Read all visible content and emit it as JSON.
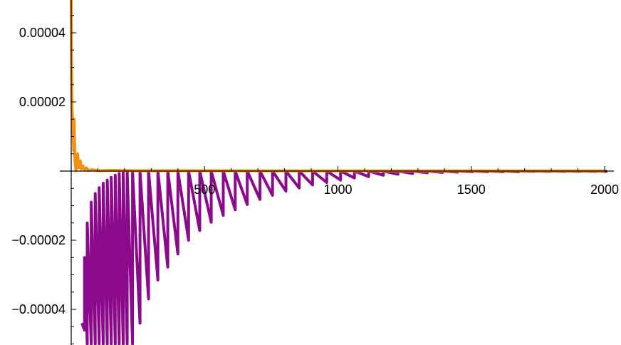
{
  "chart_data": {
    "type": "line",
    "title": "",
    "xlabel": "",
    "ylabel": "",
    "xlim": [
      0,
      2010
    ],
    "ylim": [
      -5e-05,
      5e-05
    ],
    "grid": false,
    "legend": "none",
    "x_ticks": [
      {
        "value": 500,
        "label": "500"
      },
      {
        "value": 1000,
        "label": "1000"
      },
      {
        "value": 1500,
        "label": "1500"
      },
      {
        "value": 2000,
        "label": "2000"
      }
    ],
    "y_ticks": [
      {
        "value": 4e-05,
        "label": "0.00004"
      },
      {
        "value": 2e-05,
        "label": "0.00002"
      },
      {
        "value": -2e-05,
        "label": "−0.00002"
      },
      {
        "value": -4e-05,
        "label": "−0.00004"
      }
    ],
    "series": [
      {
        "color": "#8B0A8B",
        "points": [
          [
            40,
            -4.4e-05
          ],
          [
            50,
            -4.6e-05
          ],
          [
            50,
            -2.5e-05
          ],
          [
            60,
            -5e-05
          ],
          [
            60,
            -1.5e-05
          ],
          [
            75,
            -5e-05
          ],
          [
            75,
            -9e-06
          ],
          [
            90,
            -5e-05
          ],
          [
            90,
            -6.5e-06
          ],
          [
            105,
            -5e-05
          ],
          [
            105,
            -4.8e-06
          ],
          [
            120,
            -5e-05
          ],
          [
            120,
            -3.5e-06
          ],
          [
            135,
            -5e-05
          ],
          [
            135,
            -2.6e-06
          ],
          [
            150,
            -5e-05
          ],
          [
            150,
            -1.8e-06
          ],
          [
            165,
            -5e-05
          ],
          [
            165,
            -1.2e-06
          ],
          [
            180,
            -5e-05
          ],
          [
            180,
            -7e-07
          ],
          [
            195,
            -5e-05
          ],
          [
            195,
            -3e-07
          ],
          [
            210,
            -5e-05
          ],
          [
            210,
            -1e-07
          ],
          [
            230,
            -5e-05
          ],
          [
            230,
            0
          ],
          [
            258,
            -4.4e-05
          ],
          [
            258,
            0
          ],
          [
            290,
            -3.7e-05
          ],
          [
            290,
            0
          ],
          [
            325,
            -3.15e-05
          ],
          [
            325,
            0
          ],
          [
            362,
            -2.78e-05
          ],
          [
            362,
            0
          ],
          [
            400,
            -2.4e-05
          ],
          [
            400,
            0
          ],
          [
            440,
            -2e-05
          ],
          [
            440,
            0
          ],
          [
            482,
            -1.72e-05
          ],
          [
            482,
            0
          ],
          [
            525,
            -1.48e-05
          ],
          [
            525,
            0
          ],
          [
            570,
            -1.28e-05
          ],
          [
            570,
            0
          ],
          [
            615,
            -1.12e-05
          ],
          [
            615,
            0
          ],
          [
            660,
            -9.7e-06
          ],
          [
            660,
            0
          ],
          [
            708,
            -8.2e-06
          ],
          [
            708,
            0
          ],
          [
            755,
            -7e-06
          ],
          [
            755,
            0
          ],
          [
            805,
            -5.8e-06
          ],
          [
            805,
            0
          ],
          [
            855,
            -4.9e-06
          ],
          [
            855,
            0
          ],
          [
            905,
            -4e-06
          ],
          [
            905,
            0
          ],
          [
            958,
            -3.3e-06
          ],
          [
            958,
            0
          ],
          [
            1010,
            -2.6e-06
          ],
          [
            1010,
            0
          ],
          [
            1062,
            -2e-06
          ],
          [
            1062,
            0
          ],
          [
            1115,
            -1.6e-06
          ],
          [
            1115,
            0
          ],
          [
            1170,
            -1.2e-06
          ],
          [
            1170,
            0
          ],
          [
            1225,
            -9e-07
          ],
          [
            1225,
            0
          ],
          [
            1280,
            -7e-07
          ],
          [
            1280,
            0
          ],
          [
            1335,
            -5e-07
          ],
          [
            1335,
            0
          ],
          [
            1392,
            -4e-07
          ],
          [
            1392,
            0
          ],
          [
            1448,
            -3e-07
          ],
          [
            1448,
            0
          ],
          [
            1505,
            -2e-07
          ],
          [
            1505,
            0
          ],
          [
            1562,
            -2e-07
          ],
          [
            1562,
            0
          ],
          [
            1620,
            -2e-07
          ],
          [
            1620,
            0
          ],
          [
            1678,
            -2e-07
          ],
          [
            1678,
            0
          ],
          [
            1736,
            -1e-07
          ],
          [
            1736,
            0
          ],
          [
            1795,
            -1e-07
          ],
          [
            1795,
            0
          ],
          [
            1852,
            -1e-07
          ],
          [
            1852,
            0
          ],
          [
            1910,
            -1e-07
          ],
          [
            1910,
            0
          ],
          [
            1968,
            -1e-07
          ],
          [
            1968,
            0
          ],
          [
            2010,
            -1e-07
          ]
        ]
      },
      {
        "color": "#F5900F",
        "points": [
          [
            0,
            5e-05
          ],
          [
            1,
            3.5e-05
          ],
          [
            3,
            1.9e-05
          ],
          [
            6,
            1.3e-05
          ],
          [
            9,
            6e-06
          ],
          [
            11,
            1.5e-05
          ],
          [
            14,
            3e-06
          ],
          [
            18,
            1e-07
          ],
          [
            24,
            5e-06
          ],
          [
            28,
            1e-06
          ],
          [
            34,
            3e-06
          ],
          [
            38,
            6e-07
          ],
          [
            44,
            1.5e-06
          ],
          [
            50,
            4e-07
          ],
          [
            57,
            9e-07
          ],
          [
            65,
            2e-07
          ],
          [
            80,
            4e-07
          ],
          [
            100,
            1e-07
          ],
          [
            150,
            2e-07
          ],
          [
            250,
            1e-07
          ],
          [
            500,
            1e-07
          ],
          [
            1000,
            5e-08
          ],
          [
            1500,
            5e-08
          ],
          [
            2000,
            5e-08
          ]
        ]
      }
    ]
  }
}
